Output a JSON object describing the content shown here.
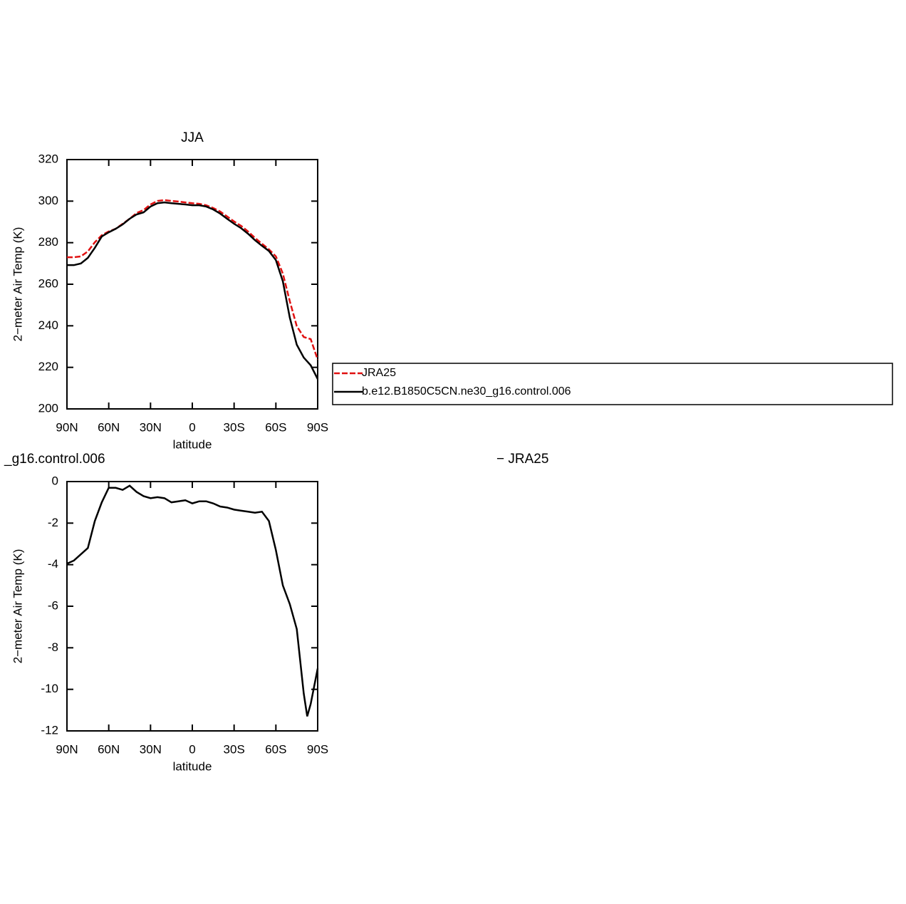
{
  "chart_data": [
    {
      "type": "line",
      "title": "JJA",
      "xlabel": "latitude",
      "ylabel": "2−meter Air Temp (K)",
      "x": [
        90,
        85,
        80,
        75,
        70,
        65,
        60,
        55,
        50,
        45,
        40,
        35,
        30,
        25,
        20,
        15,
        10,
        5,
        0,
        -5,
        -10,
        -15,
        -20,
        -25,
        -30,
        -35,
        -40,
        -45,
        -50,
        -55,
        -60,
        -65,
        -70,
        -75,
        -80,
        -85,
        -90
      ],
      "xlim": [
        90,
        -90
      ],
      "xticks": [
        {
          "value": 90,
          "label": "90N"
        },
        {
          "value": 60,
          "label": "60N"
        },
        {
          "value": 30,
          "label": "30N"
        },
        0,
        {
          "value": -30,
          "label": "30S"
        },
        {
          "value": -60,
          "label": "60S"
        },
        {
          "value": -90,
          "label": "90S"
        }
      ],
      "ylim": [
        200,
        320
      ],
      "yticks": [
        200,
        220,
        240,
        260,
        280,
        300,
        320
      ],
      "legend": "right",
      "series": [
        {
          "name": "JRA25",
          "color": "#e01010",
          "dash": true,
          "values": [
            273,
            273,
            273.4,
            275.8,
            280.2,
            283.6,
            285.4,
            286.7,
            289.1,
            291.5,
            294.3,
            295.7,
            298.4,
            300.1,
            300.5,
            300.1,
            299.8,
            299.4,
            299,
            298.7,
            298,
            296.7,
            295,
            292.6,
            290.2,
            288.1,
            285.4,
            282.3,
            279.5,
            276.8,
            273.4,
            265.1,
            251.8,
            239.8,
            234.6,
            233.6,
            223.7
          ]
        },
        {
          "name": "b.e12.B1850C5CN.ne30_g16.control.006",
          "color": "#000000",
          "dash": false,
          "values": [
            269.2,
            269.2,
            270,
            272.7,
            277.5,
            283,
            285,
            286.7,
            288.8,
            291.5,
            293.6,
            294.6,
            297.4,
            299,
            299.4,
            299,
            298.7,
            298.4,
            298,
            298,
            297.4,
            296,
            294,
            291.5,
            289.1,
            287,
            284.3,
            281.2,
            278.5,
            276,
            271.6,
            261.4,
            243.9,
            230.9,
            224.7,
            221,
            214.4
          ]
        }
      ]
    },
    {
      "type": "line",
      "title_left": "_g16.control.006",
      "title_right": "− JRA25",
      "xlabel": "latitude",
      "ylabel": "2−meter Air Temp (K)",
      "x": [
        90,
        85,
        80,
        75,
        70,
        65,
        60,
        55,
        50,
        45,
        40,
        35,
        30,
        25,
        20,
        15,
        10,
        5,
        0,
        -5,
        -10,
        -15,
        -20,
        -25,
        -30,
        -35,
        -40,
        -45,
        -50,
        -55,
        -60,
        -65,
        -70,
        -75,
        -80,
        -82.5,
        -85,
        -90
      ],
      "xlim": [
        90,
        -90
      ],
      "xticks": [
        {
          "value": 90,
          "label": "90N"
        },
        {
          "value": 60,
          "label": "60N"
        },
        {
          "value": 30,
          "label": "30N"
        },
        0,
        {
          "value": -30,
          "label": "30S"
        },
        {
          "value": -60,
          "label": "60S"
        },
        {
          "value": -90,
          "label": "90S"
        }
      ],
      "ylim": [
        -12,
        0
      ],
      "yticks": [
        -12,
        -10,
        -8,
        -6,
        -4,
        -2,
        0
      ],
      "series": [
        {
          "color": "#000000",
          "dash": false,
          "values": [
            -3.95,
            -3.8,
            -3.5,
            -3.2,
            -1.9,
            -1.0,
            -0.3,
            -0.3,
            -0.4,
            -0.2,
            -0.5,
            -0.7,
            -0.8,
            -0.75,
            -0.8,
            -1.0,
            -0.95,
            -0.9,
            -1.05,
            -0.95,
            -0.95,
            -1.05,
            -1.2,
            -1.25,
            -1.35,
            -1.4,
            -1.45,
            -1.5,
            -1.45,
            -1.9,
            -3.3,
            -5.0,
            -5.9,
            -7.1,
            -10.2,
            -11.3,
            -10.7,
            -9.0
          ]
        }
      ]
    }
  ]
}
